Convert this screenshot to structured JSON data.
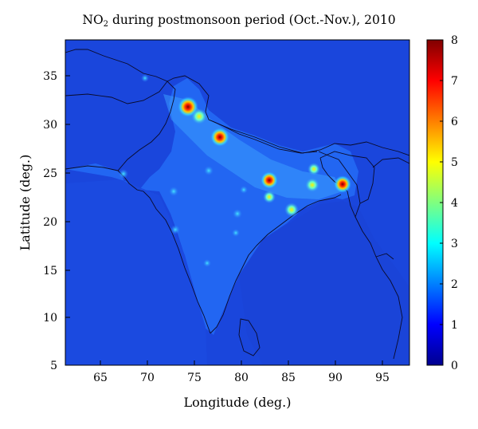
{
  "map": {
    "title_prefix": "NO",
    "title_subscript": "2",
    "title_suffix": " during postmonsoon period (Oct.-Nov.), 2010",
    "xlabel": "Longitude (deg.)",
    "ylabel": "Latitude (deg.)",
    "x_ticks": [
      "65",
      "70",
      "75",
      "80",
      "85",
      "90",
      "95"
    ],
    "y_ticks": [
      "35",
      "30",
      "25",
      "20",
      "15",
      "10",
      "5"
    ],
    "colorbar_ticks": [
      "8",
      "7",
      "6",
      "5",
      "4",
      "3",
      "2",
      "1",
      "0"
    ],
    "colormap": "jet",
    "background_color": "#1a48e0",
    "land_color": "#2568f5",
    "extent": {
      "lon": [
        61,
        97.5
      ],
      "lat": [
        5,
        38.5
      ]
    },
    "hotspots": [
      {
        "lon": 74.3,
        "lat": 31.5,
        "value": 7.5
      },
      {
        "lon": 77.2,
        "lat": 28.6,
        "value": 7.0
      },
      {
        "lon": 82.9,
        "lat": 24.1,
        "value": 6.8
      },
      {
        "lon": 90.4,
        "lat": 23.7,
        "value": 7.2
      },
      {
        "lon": 87.2,
        "lat": 23.6,
        "value": 4.6
      },
      {
        "lon": 85.4,
        "lat": 20.9,
        "value": 4.3
      },
      {
        "lon": 82.8,
        "lat": 22.3,
        "value": 3.6
      },
      {
        "lon": 88.2,
        "lat": 25.0,
        "value": 3.6
      },
      {
        "lon": 76.0,
        "lat": 30.6,
        "value": 4.0
      }
    ]
  }
}
